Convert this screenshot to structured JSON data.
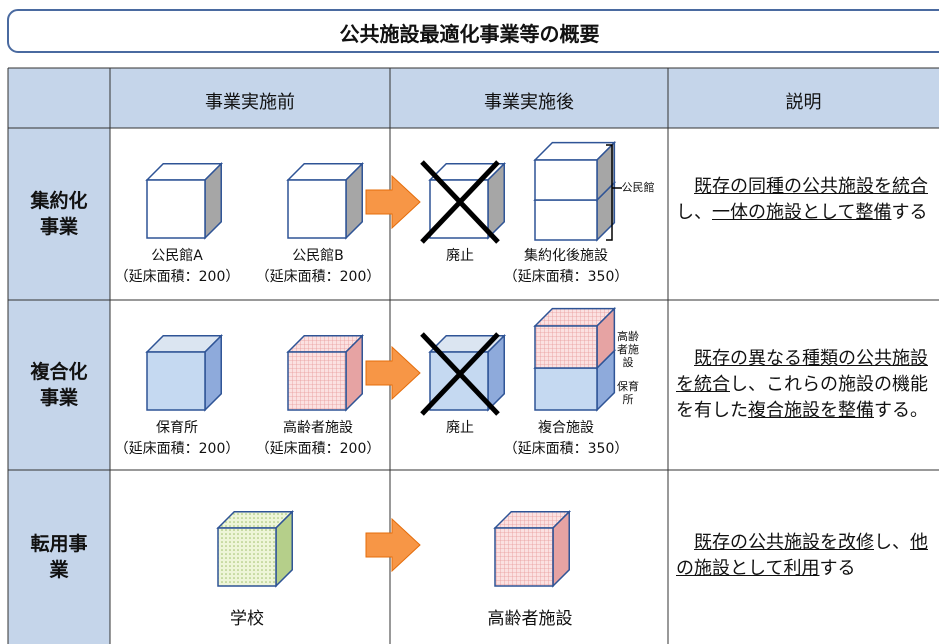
{
  "title": "公共施設最適化事業等の概要",
  "header": [
    "事業実施前",
    "事業実施後",
    "説明"
  ],
  "rows": [
    {
      "label": "集約化事業",
      "before": [
        {
          "name": "公民館A",
          "area": "（延床面積：200）"
        },
        {
          "name": "公民館B",
          "area": "（延床面積：200）"
        }
      ],
      "removed": "廃止",
      "after": {
        "name": "集約化後施設",
        "area": "（延床面積：350）",
        "parts": [
          "公民館"
        ]
      },
      "description": [
        {
          "text": "既存の同種の公共施設を統合",
          "underline": true
        },
        {
          "text": "し、",
          "underline": false
        },
        {
          "text": "一体の施設として整備",
          "underline": true
        },
        {
          "text": "する",
          "underline": false
        }
      ]
    },
    {
      "label": "複合化事業",
      "before": [
        {
          "name": "保育所",
          "area": "（延床面積：200）"
        },
        {
          "name": "高齢者施設",
          "area": "（延床面積：200）"
        }
      ],
      "removed": "廃止",
      "after": {
        "name": "複合施設",
        "area": "（延床面積：350）",
        "parts": [
          "高齢者施設",
          "保育所"
        ]
      },
      "description": [
        {
          "text": "既存の異なる種類の公共施設を統合",
          "underline": true
        },
        {
          "text": "し、これらの施設の機能を有した",
          "underline": false
        },
        {
          "text": "複合施設を整備",
          "underline": true
        },
        {
          "text": "する。",
          "underline": false
        }
      ]
    },
    {
      "label": "転用事業",
      "before": [
        {
          "name": "学校"
        }
      ],
      "after": {
        "name": "高齢者施設"
      },
      "description": [
        {
          "text": "既存の公共施設を改修",
          "underline": true
        },
        {
          "text": "し、",
          "underline": false
        },
        {
          "text": "他の施設として利用",
          "underline": true
        },
        {
          "text": "する",
          "underline": false
        }
      ]
    }
  ]
}
